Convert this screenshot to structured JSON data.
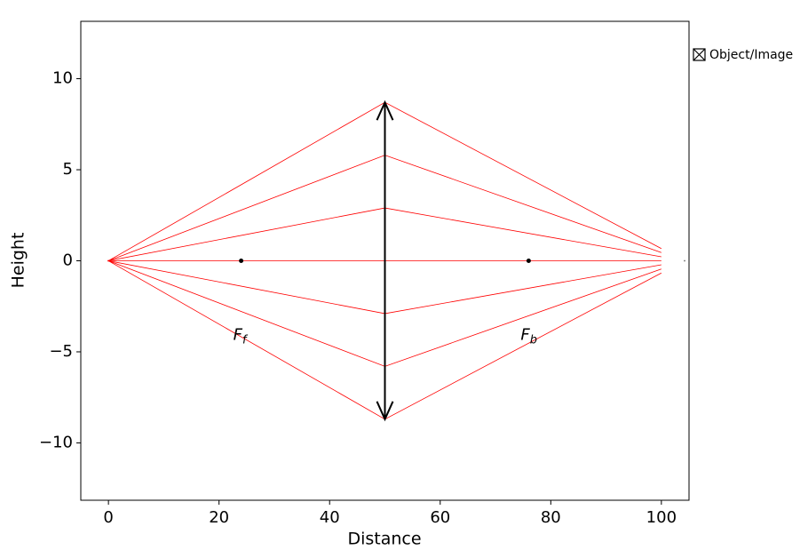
{
  "chart_data": {
    "type": "line",
    "x_label": "Distance",
    "y_label": "Height",
    "xlim": [
      -5,
      105
    ],
    "ylim": [
      -13.15,
      13.15
    ],
    "xticks": [
      0,
      20,
      40,
      60,
      80,
      100
    ],
    "yticks": [
      {
        "value": -10,
        "label": "−10"
      },
      {
        "value": -5,
        "label": "−5"
      },
      0,
      5,
      10
    ],
    "grid": false,
    "legend": "outside upper right",
    "series": [
      {
        "color": "#ff0000",
        "x": [
          0,
          50,
          100
        ],
        "values": [
          0,
          8.7,
          0.67
        ]
      },
      {
        "color": "#ff0000",
        "x": [
          0,
          50,
          100
        ],
        "values": [
          0,
          5.8,
          0.45
        ]
      },
      {
        "color": "#ff0000",
        "x": [
          0,
          50,
          100
        ],
        "values": [
          0,
          2.9,
          0.22
        ]
      },
      {
        "color": "#ff0000",
        "x": [
          0,
          50,
          100
        ],
        "values": [
          0,
          0,
          0
        ]
      },
      {
        "color": "#ff0000",
        "x": [
          0,
          50,
          100
        ],
        "values": [
          0,
          -2.9,
          -0.22
        ]
      },
      {
        "color": "#ff0000",
        "x": [
          0,
          50,
          100
        ],
        "values": [
          0,
          -5.8,
          -0.45
        ]
      },
      {
        "color": "#ff0000",
        "x": [
          0,
          50,
          100
        ],
        "values": [
          0,
          -8.7,
          -0.67
        ]
      },
      {
        "name": "Object/Image",
        "color": "#000000",
        "x": [
          0,
          104.2
        ],
        "values": [
          0,
          0
        ]
      }
    ],
    "lens": {
      "x": 50,
      "top": 8.7,
      "bottom": -8.7,
      "color": "#000000"
    },
    "focal_points": [
      {
        "x": 24,
        "y": 0,
        "label": "F",
        "subscript": "f",
        "label_y": -4.1
      },
      {
        "x": 76,
        "y": 0,
        "label": "F",
        "subscript": "b",
        "label_y": -4.1
      }
    ]
  }
}
